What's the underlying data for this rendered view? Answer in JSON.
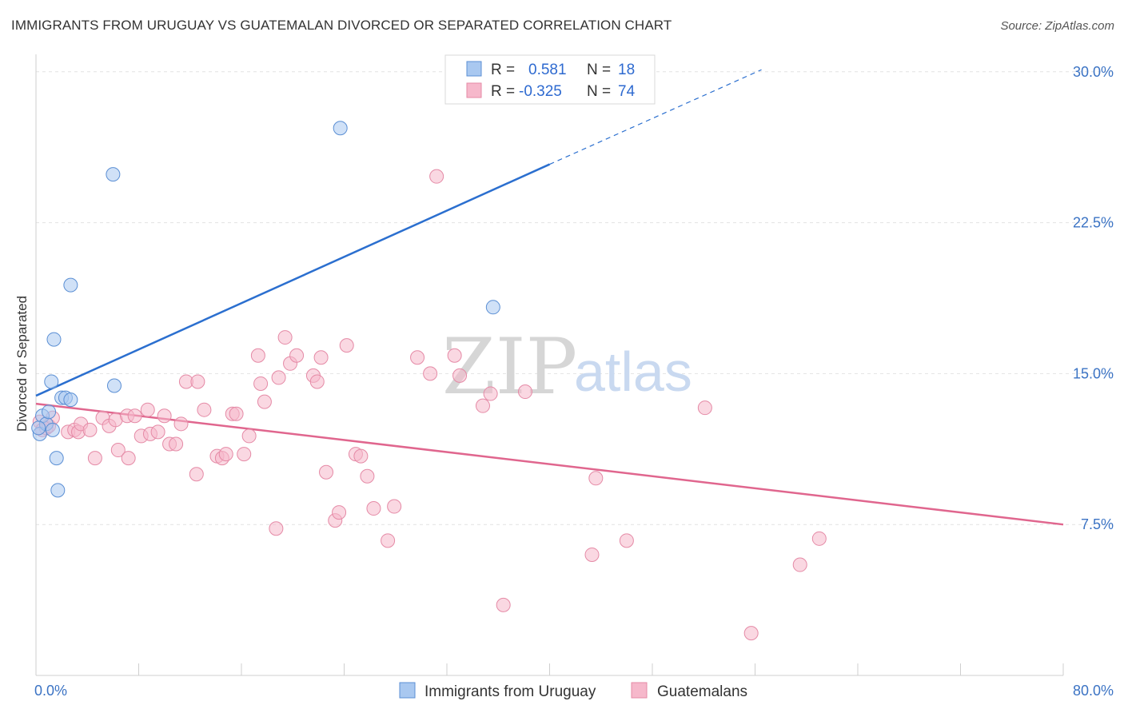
{
  "header": {
    "title": "IMMIGRANTS FROM URUGUAY VS GUATEMALAN DIVORCED OR SEPARATED CORRELATION CHART",
    "source": "Source: ZipAtlas.com"
  },
  "watermark": {
    "zip": "ZIP",
    "atlas": "atlas"
  },
  "legend": {
    "rows": [
      {
        "r_label": "R =",
        "r_value": "0.581",
        "n_label": "N =",
        "n_value": "18",
        "color": "#a9c8f0"
      },
      {
        "r_label": "R =",
        "r_value": "-0.325",
        "n_label": "N =",
        "n_value": "74",
        "color": "#f6b8cb"
      }
    ]
  },
  "chart_data": {
    "type": "scatter",
    "title": "IMMIGRANTS FROM URUGUAY VS GUATEMALAN DIVORCED OR SEPARATED CORRELATION CHART",
    "xlabel": "",
    "ylabel": "Divorced or Separated",
    "xlim": [
      0,
      80
    ],
    "ylim": [
      0,
      31.5
    ],
    "x_ticks": [
      "0.0%",
      "80.0%"
    ],
    "y_ticks": [
      {
        "value": 7.5,
        "label": "7.5%"
      },
      {
        "value": 15.0,
        "label": "15.0%"
      },
      {
        "value": 22.5,
        "label": "22.5%"
      },
      {
        "value": 30.0,
        "label": "30.0%"
      }
    ],
    "grid": true,
    "legend_position": "bottom",
    "series": [
      {
        "name": "Immigrants from Uruguay",
        "color": "#a9c8f0",
        "stroke": "#5b8fd4",
        "line_color": "#2b6fcf",
        "trend": {
          "x_start": 0,
          "y_start": 13.9,
          "x_solid_end": 40,
          "y_solid_end": 25.4,
          "x_dash_end": 56.5,
          "y_dash_end": 30.1
        },
        "points": [
          [
            0.3,
            12.0
          ],
          [
            0.5,
            12.9
          ],
          [
            0.8,
            12.5
          ],
          [
            1.0,
            13.1
          ],
          [
            1.2,
            14.6
          ],
          [
            1.3,
            12.2
          ],
          [
            1.4,
            16.7
          ],
          [
            1.6,
            10.8
          ],
          [
            1.7,
            9.2
          ],
          [
            2.0,
            13.8
          ],
          [
            2.3,
            13.8
          ],
          [
            2.7,
            13.7
          ],
          [
            2.7,
            19.4
          ],
          [
            6.0,
            24.9
          ],
          [
            6.1,
            14.4
          ],
          [
            23.7,
            27.2
          ],
          [
            35.6,
            18.3
          ],
          [
            0.2,
            12.3
          ]
        ]
      },
      {
        "name": "Guatemalans",
        "color": "#f6b8cb",
        "stroke": "#e58aa6",
        "line_color": "#e0668e",
        "trend": {
          "x_start": 0,
          "y_start": 13.5,
          "x_solid_end": 80,
          "y_solid_end": 7.5
        },
        "points": [
          [
            0.3,
            12.6
          ],
          [
            0.5,
            12.2
          ],
          [
            0.8,
            12.3
          ],
          [
            1.0,
            12.4
          ],
          [
            1.3,
            12.8
          ],
          [
            2.5,
            12.1
          ],
          [
            3.0,
            12.2
          ],
          [
            3.3,
            12.1
          ],
          [
            3.5,
            12.5
          ],
          [
            4.2,
            12.2
          ],
          [
            4.6,
            10.8
          ],
          [
            5.2,
            12.8
          ],
          [
            5.7,
            12.4
          ],
          [
            6.2,
            12.7
          ],
          [
            6.4,
            11.2
          ],
          [
            7.2,
            10.8
          ],
          [
            7.1,
            12.9
          ],
          [
            7.7,
            12.9
          ],
          [
            8.2,
            11.9
          ],
          [
            8.7,
            13.2
          ],
          [
            8.9,
            12.0
          ],
          [
            9.5,
            12.1
          ],
          [
            10.0,
            12.9
          ],
          [
            10.4,
            11.5
          ],
          [
            10.9,
            11.5
          ],
          [
            11.3,
            12.5
          ],
          [
            11.7,
            14.6
          ],
          [
            12.6,
            14.6
          ],
          [
            12.5,
            10.0
          ],
          [
            13.1,
            13.2
          ],
          [
            14.1,
            10.9
          ],
          [
            14.5,
            10.8
          ],
          [
            14.8,
            11.0
          ],
          [
            15.3,
            13.0
          ],
          [
            15.6,
            13.0
          ],
          [
            16.2,
            11.0
          ],
          [
            16.6,
            11.9
          ],
          [
            17.3,
            15.9
          ],
          [
            17.5,
            14.5
          ],
          [
            17.8,
            13.6
          ],
          [
            18.7,
            7.3
          ],
          [
            18.9,
            14.8
          ],
          [
            19.4,
            16.8
          ],
          [
            19.8,
            15.5
          ],
          [
            20.3,
            15.9
          ],
          [
            21.6,
            14.9
          ],
          [
            21.9,
            14.6
          ],
          [
            22.2,
            15.8
          ],
          [
            22.6,
            10.1
          ],
          [
            23.3,
            7.7
          ],
          [
            23.6,
            8.1
          ],
          [
            24.2,
            16.4
          ],
          [
            24.9,
            11.0
          ],
          [
            25.3,
            10.9
          ],
          [
            25.8,
            9.9
          ],
          [
            26.3,
            8.3
          ],
          [
            27.4,
            6.7
          ],
          [
            27.9,
            8.4
          ],
          [
            29.7,
            15.8
          ],
          [
            30.7,
            15.0
          ],
          [
            31.2,
            24.8
          ],
          [
            32.6,
            15.9
          ],
          [
            33.0,
            14.9
          ],
          [
            34.8,
            13.4
          ],
          [
            35.4,
            14.0
          ],
          [
            36.4,
            3.5
          ],
          [
            38.1,
            14.1
          ],
          [
            43.3,
            6.0
          ],
          [
            43.6,
            9.8
          ],
          [
            46.0,
            6.7
          ],
          [
            52.1,
            13.3
          ],
          [
            55.7,
            2.1
          ],
          [
            59.5,
            5.5
          ],
          [
            61.0,
            6.8
          ]
        ]
      }
    ]
  }
}
